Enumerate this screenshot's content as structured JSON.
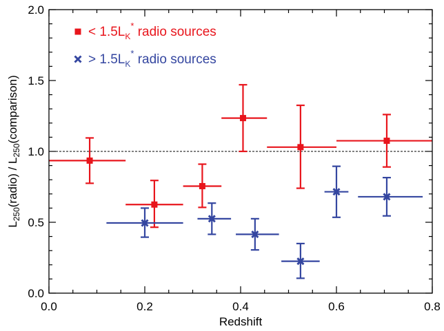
{
  "chart_data": {
    "type": "scatter",
    "xlabel": "Redshift",
    "ylabel": {
      "L1": "L",
      "sub1": "250",
      "mid": "(radio) / L",
      "sub2": "250",
      "tail": "(comparison)"
    },
    "xlim": [
      0.0,
      0.8
    ],
    "ylim": [
      0.0,
      2.0
    ],
    "x_ticks": [
      "0.0",
      "0.2",
      "0.4",
      "0.6",
      "0.8"
    ],
    "y_ticks": [
      "0.0",
      "0.5",
      "1.0",
      "1.5",
      "2.0"
    ],
    "reference_line": {
      "y": 1.0,
      "style": "dashed"
    },
    "grid": false,
    "legend_position": "top-left",
    "series": [
      {
        "legend": {
          "prefix": "< 1.5L",
          "sub": "K",
          "sup": "*",
          "suffix": " radio sources"
        },
        "color": "#e8151c",
        "marker": "square",
        "points": [
          {
            "x": 0.085,
            "y": 0.935,
            "xerr": [
              0.0,
              0.16
            ],
            "yerr": [
              0.775,
              1.095
            ]
          },
          {
            "x": 0.22,
            "y": 0.625,
            "xerr": [
              0.16,
              0.28
            ],
            "yerr": [
              0.465,
              0.795
            ]
          },
          {
            "x": 0.32,
            "y": 0.755,
            "xerr": [
              0.28,
              0.36
            ],
            "yerr": [
              0.605,
              0.91
            ]
          },
          {
            "x": 0.405,
            "y": 1.235,
            "xerr": [
              0.36,
              0.455
            ],
            "yerr": [
              1.0,
              1.47
            ]
          },
          {
            "x": 0.525,
            "y": 1.03,
            "xerr": [
              0.455,
              0.6
            ],
            "yerr": [
              0.74,
              1.325
            ]
          },
          {
            "x": 0.705,
            "y": 1.075,
            "xerr": [
              0.6,
              0.8
            ],
            "yerr": [
              0.89,
              1.26
            ]
          }
        ]
      },
      {
        "legend": {
          "prefix": "> 1.5L",
          "sub": "K",
          "sup": "*",
          "suffix": " radio sources"
        },
        "color": "#3446a0",
        "marker": "x",
        "points": [
          {
            "x": 0.2,
            "y": 0.495,
            "xerr": [
              0.12,
              0.28
            ],
            "yerr": [
              0.395,
              0.6
            ]
          },
          {
            "x": 0.34,
            "y": 0.525,
            "xerr": [
              0.31,
              0.38
            ],
            "yerr": [
              0.415,
              0.635
            ]
          },
          {
            "x": 0.43,
            "y": 0.415,
            "xerr": [
              0.39,
              0.48
            ],
            "yerr": [
              0.305,
              0.525
            ]
          },
          {
            "x": 0.525,
            "y": 0.225,
            "xerr": [
              0.485,
              0.565
            ],
            "yerr": [
              0.105,
              0.35
            ]
          },
          {
            "x": 0.6,
            "y": 0.715,
            "xerr": [
              0.575,
              0.625
            ],
            "yerr": [
              0.535,
              0.895
            ]
          },
          {
            "x": 0.705,
            "y": 0.68,
            "xerr": [
              0.645,
              0.78
            ],
            "yerr": [
              0.545,
              0.815
            ]
          }
        ]
      }
    ]
  }
}
